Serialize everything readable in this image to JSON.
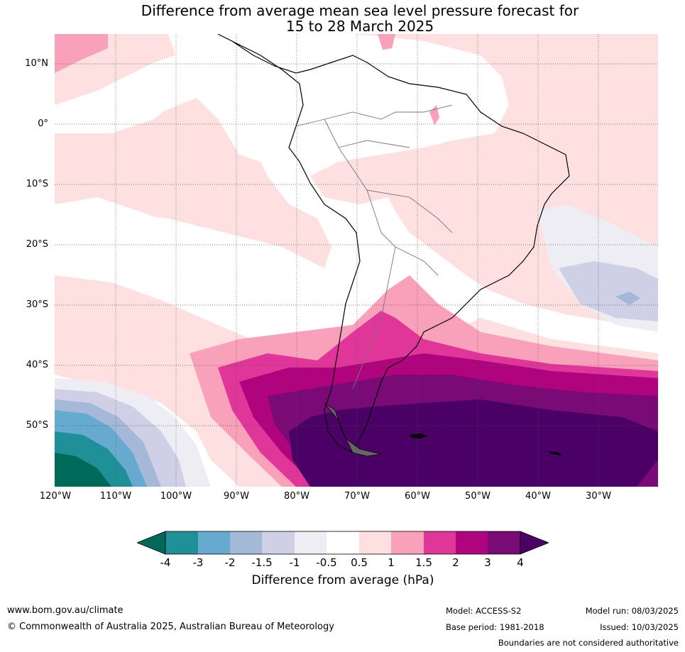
{
  "title_line1": "Difference from average mean sea level pressure forecast for",
  "title_line2": "15 to 28 March 2025",
  "lat_labels": [
    "10°N",
    "0°",
    "10°S",
    "20°S",
    "30°S",
    "40°S",
    "50°S"
  ],
  "lon_labels": [
    "120°W",
    "110°W",
    "100°W",
    "90°W",
    "80°W",
    "70°W",
    "60°W",
    "50°W",
    "40°W",
    "30°W"
  ],
  "colorbar": {
    "title": "Difference from average (hPa)",
    "ticks": [
      "-4",
      "-3",
      "-2",
      "-1.5",
      "-1",
      "-0.5",
      "0.5",
      "1",
      "1.5",
      "2",
      "3",
      "4"
    ],
    "colors": [
      "#006a5a",
      "#1f9097",
      "#66aad0",
      "#a4b8d8",
      "#cfd0e6",
      "#efedf4",
      "#ffffff",
      "#fde0df",
      "#f9a0bb",
      "#e0369a",
      "#b0047e",
      "#7a0a76",
      "#4b0066"
    ]
  },
  "footer": {
    "website": "www.bom.gov.au/climate",
    "copyright": "© Commonwealth of Australia 2025, Australian Bureau of Meteorology",
    "model": "Model: ACCESS-S2",
    "base_period": "Base period: 1981-2018",
    "model_run": "Model run: 08/03/2025",
    "issued": "Issued: 10/03/2025",
    "disclaimer": "Boundaries are not considered authoritative"
  }
}
